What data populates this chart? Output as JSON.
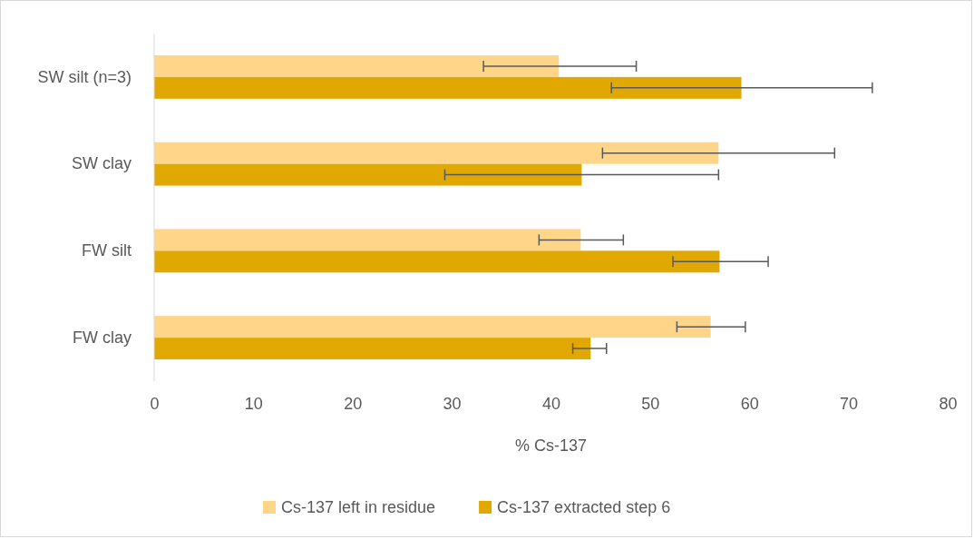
{
  "chart_data": {
    "type": "bar",
    "orientation": "horizontal",
    "xlabel": "% Cs-137",
    "categories": [
      "SW silt (n=3)",
      "SW clay",
      "FW silt",
      "FW clay"
    ],
    "series": [
      {
        "name": "Cs-137 left in residue",
        "color": "#ffd58a",
        "values": [
          40.8,
          56.9,
          43.0,
          56.1
        ],
        "errors": [
          [
            33.2,
            48.6
          ],
          [
            45.2,
            68.6
          ],
          [
            38.8,
            47.3
          ],
          [
            52.7,
            59.6
          ]
        ]
      },
      {
        "name": "Cs-137 extracted step 6",
        "color": "#e0a800",
        "values": [
          59.2,
          43.1,
          57.0,
          44.0
        ],
        "errors": [
          [
            46.1,
            72.4
          ],
          [
            29.3,
            56.9
          ],
          [
            52.3,
            61.9
          ],
          [
            42.2,
            45.6
          ]
        ]
      }
    ],
    "xlim": [
      0,
      80
    ],
    "xticks": [
      0,
      10,
      20,
      30,
      40,
      50,
      60,
      70,
      80
    ],
    "grid": false,
    "legend": "bottom"
  }
}
